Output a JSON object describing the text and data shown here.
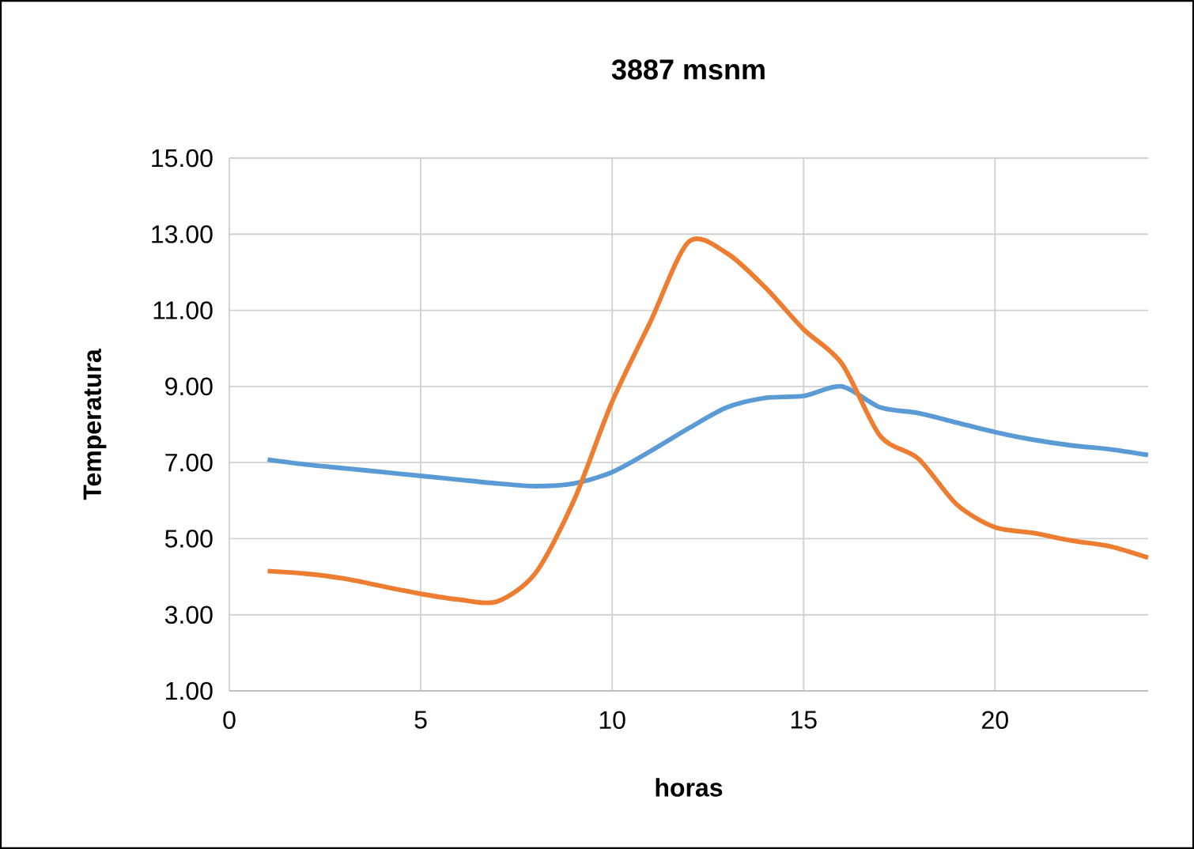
{
  "chart_data": {
    "type": "line",
    "title": "3887 msnm",
    "xlabel": "horas",
    "ylabel": "Temperatura",
    "x": [
      1,
      2,
      3,
      4,
      5,
      6,
      7,
      8,
      9,
      10,
      11,
      12,
      13,
      14,
      15,
      16,
      17,
      18,
      19,
      20,
      21,
      22,
      23,
      24
    ],
    "series": [
      {
        "color": "#5b9bd5",
        "values": [
          7.08,
          6.95,
          6.85,
          6.75,
          6.65,
          6.55,
          6.45,
          6.38,
          6.45,
          6.75,
          7.3,
          7.9,
          8.45,
          8.7,
          8.75,
          9.0,
          8.45,
          8.3,
          8.05,
          7.8,
          7.6,
          7.45,
          7.35,
          7.2
        ]
      },
      {
        "color": "#ed7d31",
        "values": [
          4.15,
          4.08,
          3.95,
          3.75,
          3.55,
          3.4,
          3.35,
          4.1,
          6.0,
          8.6,
          10.7,
          12.8,
          12.5,
          11.6,
          10.5,
          9.6,
          7.7,
          7.1,
          5.9,
          5.3,
          5.15,
          4.95,
          4.8,
          4.5
        ]
      }
    ],
    "xlim": [
      0,
      24
    ],
    "xticks": [
      0,
      5,
      10,
      15,
      20
    ],
    "ylim": [
      1,
      15
    ],
    "yticks": [
      {
        "value": 1,
        "label": "1.00"
      },
      {
        "value": 3,
        "label": "3.00"
      },
      {
        "value": 5,
        "label": "5.00"
      },
      {
        "value": 7,
        "label": "7.00"
      },
      {
        "value": 9,
        "label": "9.00"
      },
      {
        "value": 11,
        "label": "11.00"
      },
      {
        "value": 13,
        "label": "13.00"
      },
      {
        "value": 15,
        "label": "15.00"
      }
    ],
    "grid": true,
    "marker": "none",
    "line_style": "solid"
  }
}
